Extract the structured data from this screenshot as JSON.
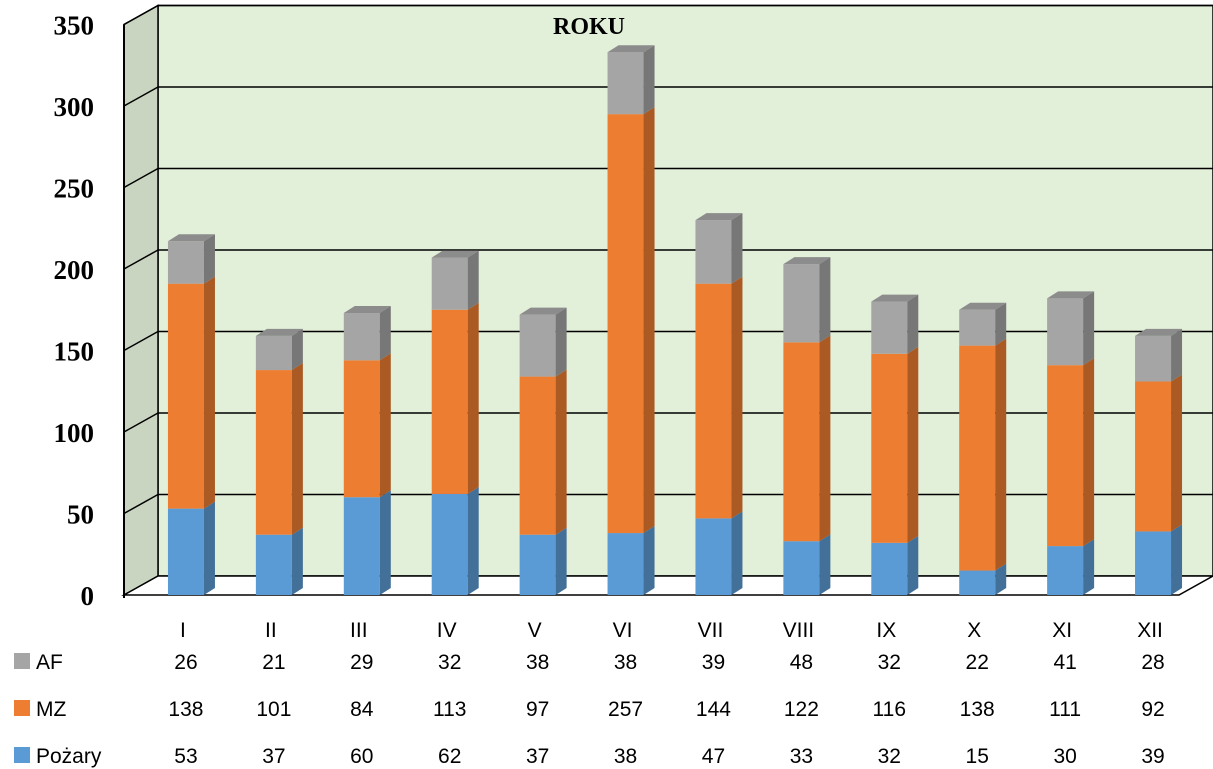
{
  "chart_data": {
    "type": "bar",
    "stacked": true,
    "three_d": true,
    "title": "ROKU",
    "categories": [
      "I",
      "II",
      "III",
      "IV",
      "V",
      "VI",
      "VII",
      "VIII",
      "IX",
      "X",
      "XI",
      "XII"
    ],
    "series": [
      {
        "name": "Pożary",
        "color": "#5b9bd5",
        "values": [
          53,
          37,
          60,
          62,
          37,
          38,
          47,
          33,
          32,
          15,
          30,
          39
        ]
      },
      {
        "name": "MZ",
        "color": "#ed7d31",
        "values": [
          138,
          101,
          84,
          113,
          97,
          257,
          144,
          122,
          116,
          138,
          111,
          92
        ]
      },
      {
        "name": "AF",
        "color": "#a5a5a5",
        "values": [
          26,
          21,
          29,
          32,
          38,
          38,
          39,
          48,
          32,
          22,
          41,
          28
        ]
      }
    ],
    "y_ticks": [
      "0",
      "50",
      "100",
      "150",
      "200",
      "250",
      "300",
      "350"
    ],
    "ylim": [
      0,
      350
    ],
    "grid": true,
    "legend": "data-table-rows",
    "table_row_order": [
      "AF",
      "MZ",
      "Pożary"
    ],
    "background_color": "#e2efd9",
    "side_wall_color": "#c9d5c0"
  }
}
